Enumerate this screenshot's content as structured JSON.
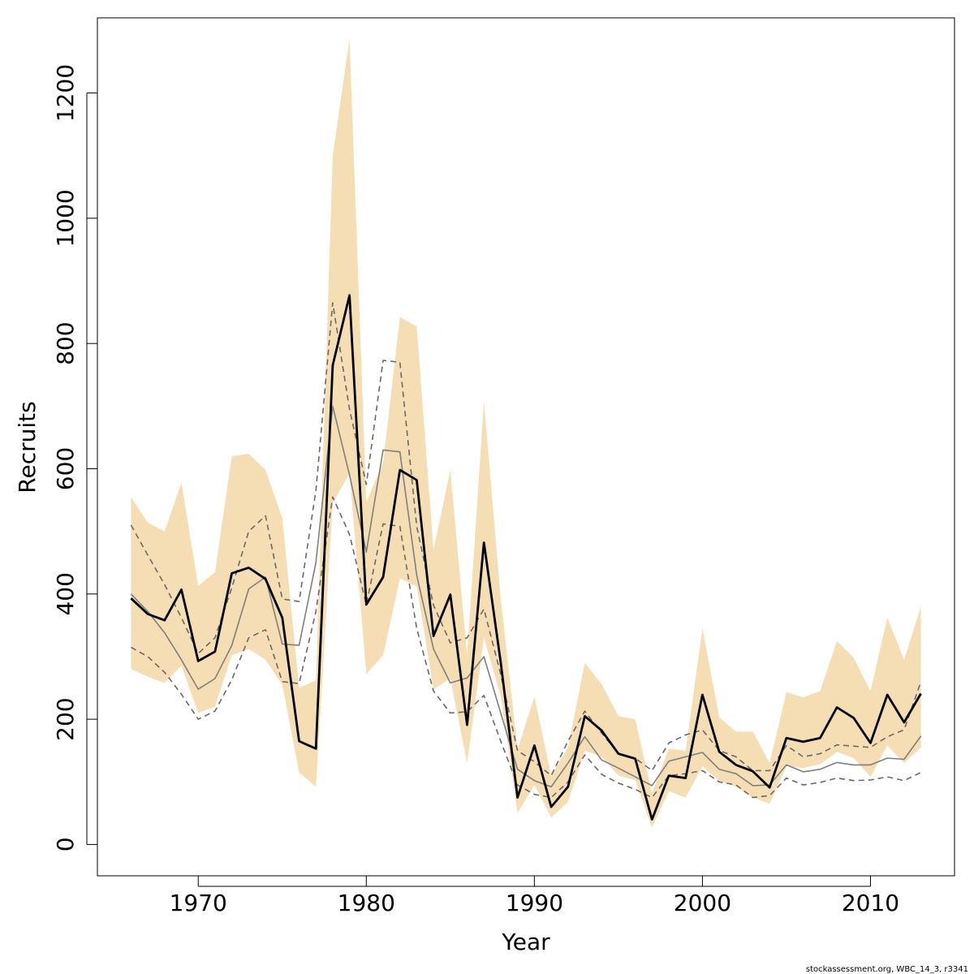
{
  "chart_data": {
    "type": "line",
    "xlabel": "Year",
    "ylabel": "Recruits",
    "xlim": [
      1964,
      2015
    ],
    "ylim": [
      -50,
      1320
    ],
    "xticks": [
      1970,
      1980,
      1990,
      2000,
      2010
    ],
    "yticks": [
      0,
      200,
      400,
      600,
      800,
      1000,
      1200
    ],
    "x": [
      1966,
      1967,
      1968,
      1969,
      1970,
      1971,
      1972,
      1973,
      1974,
      1975,
      1976,
      1977,
      1978,
      1979,
      1980,
      1981,
      1982,
      1983,
      1984,
      1985,
      1986,
      1987,
      1988,
      1989,
      1990,
      1991,
      1992,
      1993,
      1994,
      1995,
      1996,
      1997,
      1998,
      1999,
      2000,
      2001,
      2002,
      2003,
      2004,
      2005,
      2006,
      2007,
      2008,
      2009,
      2010,
      2011,
      2012,
      2013
    ],
    "band": {
      "color": "#f5deb3",
      "upper": [
        555,
        514,
        500,
        578,
        413,
        435,
        620,
        624,
        598,
        521,
        250,
        262,
        1100,
        1287,
        547,
        610,
        842,
        827,
        470,
        598,
        302,
        707,
        393,
        152,
        236,
        110,
        155,
        290,
        256,
        205,
        200,
        82,
        153,
        150,
        345,
        203,
        180,
        180,
        130,
        243,
        235,
        245,
        325,
        298,
        245,
        362,
        295,
        380
      ],
      "lower": [
        280,
        268,
        258,
        285,
        210,
        220,
        302,
        312,
        295,
        255,
        115,
        92,
        545,
        593,
        272,
        302,
        425,
        412,
        248,
        265,
        130,
        330,
        237,
        50,
        95,
        43,
        68,
        150,
        140,
        110,
        103,
        27,
        85,
        75,
        125,
        102,
        92,
        75,
        65,
        125,
        122,
        128,
        148,
        138,
        108,
        158,
        130,
        155
      ]
    },
    "series": [
      {
        "style": "thick-black",
        "color": "#000000",
        "values": [
          393,
          368,
          358,
          407,
          293,
          308,
          433,
          442,
          424,
          362,
          165,
          153,
          765,
          877,
          383,
          427,
          598,
          582,
          333,
          399,
          191,
          482,
          291,
          75,
          158,
          60,
          92,
          205,
          182,
          145,
          137,
          40,
          110,
          106,
          239,
          148,
          127,
          117,
          91,
          170,
          164,
          170,
          219,
          202,
          162,
          239,
          195,
          241
        ]
      },
      {
        "style": "thin-gray",
        "color": "#7f7f7f",
        "values": [
          400,
          372,
          338,
          295,
          248,
          265,
          318,
          408,
          427,
          320,
          318,
          450,
          700,
          590,
          467,
          630,
          627,
          430,
          312,
          258,
          266,
          300,
          210,
          120,
          102,
          92,
          130,
          172,
          135,
          122,
          108,
          94,
          133,
          140,
          147,
          120,
          113,
          94,
          95,
          127,
          116,
          120,
          131,
          127,
          127,
          138,
          136,
          173
        ]
      },
      {
        "style": "dashed-gray-upper",
        "color": "#696969",
        "values": [
          510,
          462,
          415,
          362,
          305,
          330,
          410,
          500,
          525,
          392,
          388,
          565,
          865,
          695,
          575,
          773,
          770,
          508,
          382,
          322,
          330,
          376,
          272,
          150,
          132,
          110,
          165,
          213,
          178,
          145,
          138,
          118,
          162,
          175,
          183,
          150,
          140,
          118,
          118,
          158,
          140,
          145,
          159,
          157,
          155,
          172,
          183,
          260
        ]
      },
      {
        "style": "dashed-gray-lower",
        "color": "#696969",
        "values": [
          315,
          300,
          275,
          240,
          200,
          213,
          263,
          330,
          343,
          260,
          257,
          372,
          555,
          495,
          383,
          512,
          508,
          345,
          245,
          210,
          212,
          238,
          165,
          95,
          80,
          75,
          100,
          143,
          112,
          98,
          88,
          75,
          110,
          113,
          118,
          100,
          95,
          75,
          78,
          106,
          95,
          99,
          106,
          102,
          103,
          108,
          102,
          115
        ]
      }
    ]
  },
  "footer": {
    "credit": "stockassessment.org, WBC_14_3, r3341"
  }
}
